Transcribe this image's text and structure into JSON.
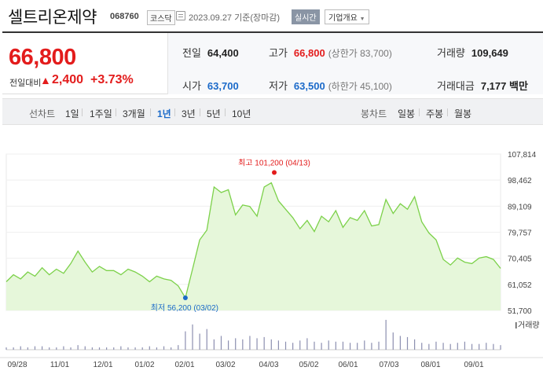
{
  "header": {
    "name": "셀트리온제약",
    "code": "068760",
    "market": "코스닥",
    "date": "2023.09.27",
    "date_suffix": "기준(장마감)",
    "realtime": "실시간",
    "company_info": "기업개요"
  },
  "price": {
    "current": "66,800",
    "change_label": "전일대비",
    "change_arrow": "▲",
    "change": "2,400",
    "change_pct": "+3.73%"
  },
  "stats": {
    "prev_close_label": "전일",
    "prev_close": "64,400",
    "high_label": "고가",
    "high": "66,800",
    "upper_limit": "(상한가 83,700)",
    "volume_label": "거래량",
    "volume": "109,649",
    "open_label": "시가",
    "open": "63,700",
    "low_label": "저가",
    "low": "63,500",
    "lower_limit": "(하한가 45,100)",
    "amount_label": "거래대금",
    "amount": "7,177",
    "amount_unit": "백만"
  },
  "period_bar": {
    "line_chart_label": "선차트",
    "line_periods": [
      "1일",
      "1주일",
      "3개월",
      "1년",
      "3년",
      "5년",
      "10년"
    ],
    "active_period": "1년",
    "candle_chart_label": "봉차트",
    "candle_periods": [
      "일봉",
      "주봉",
      "월봉"
    ]
  },
  "chart_data": {
    "type": "area",
    "title": "",
    "ylim": [
      51700,
      107814
    ],
    "y_ticks": [
      "107,814",
      "98,462",
      "89,109",
      "79,757",
      "70,405",
      "61,052",
      "51,700"
    ],
    "x_ticks": [
      "09/28",
      "11/01",
      "12/01",
      "01/02",
      "02/01",
      "03/02",
      "04/03",
      "05/02",
      "06/01",
      "07/03",
      "08/01",
      "09/01"
    ],
    "max_annotation": "최고 101,200 (04/13)",
    "min_annotation": "최저 56,200 (03/02)",
    "volume_label": "거래량",
    "line_color": "#7cd14a",
    "fill_color": "#e6f7da",
    "x": [
      "09/28",
      "10/05",
      "10/12",
      "10/19",
      "10/26",
      "11/01",
      "11/08",
      "11/15",
      "11/22",
      "11/29",
      "12/01",
      "12/08",
      "12/15",
      "12/22",
      "12/29",
      "01/02",
      "01/09",
      "01/16",
      "01/23",
      "01/30",
      "02/01",
      "02/08",
      "02/15",
      "02/22",
      "02/27",
      "03/02",
      "03/06",
      "03/09",
      "03/13",
      "03/16",
      "03/20",
      "03/23",
      "03/27",
      "03/30",
      "04/03",
      "04/06",
      "04/10",
      "04/13",
      "04/17",
      "04/20",
      "04/24",
      "04/27",
      "05/02",
      "05/08",
      "05/15",
      "05/22",
      "05/29",
      "06/01",
      "06/08",
      "06/15",
      "06/22",
      "06/29",
      "07/03",
      "07/06",
      "07/10",
      "07/13",
      "07/17",
      "07/20",
      "07/24",
      "07/27",
      "08/01",
      "08/07",
      "08/14",
      "08/21",
      "08/28",
      "09/01",
      "09/08",
      "09/15",
      "09/22",
      "09/27"
    ],
    "y": [
      62000,
      64500,
      63000,
      65500,
      64000,
      67000,
      64500,
      66500,
      65000,
      68500,
      73000,
      69000,
      65500,
      67500,
      66000,
      66000,
      64500,
      66500,
      65500,
      64000,
      62000,
      64000,
      63000,
      62500,
      60500,
      56200,
      66500,
      77000,
      80500,
      96000,
      94000,
      95000,
      86000,
      89500,
      89000,
      85500,
      96000,
      97500,
      91000,
      88000,
      85000,
      81000,
      84000,
      80000,
      85500,
      83500,
      87500,
      81500,
      85000,
      84000,
      87500,
      82000,
      82500,
      91500,
      86500,
      90000,
      88000,
      92500,
      83500,
      79500,
      77000,
      70000,
      68000,
      70500,
      69000,
      68500,
      70500,
      71000,
      70000,
      66800
    ],
    "volume": [
      2,
      2,
      3,
      2,
      3,
      3,
      2,
      2,
      3,
      2,
      4,
      3,
      2,
      2,
      2,
      2,
      3,
      2,
      2,
      2,
      3,
      2,
      3,
      2,
      4,
      16,
      22,
      14,
      18,
      9,
      12,
      8,
      10,
      9,
      12,
      10,
      11,
      9,
      8,
      7,
      6,
      8,
      10,
      7,
      6,
      8,
      7,
      7,
      6,
      6,
      8,
      6,
      7,
      26,
      15,
      12,
      11,
      9,
      6,
      5,
      7,
      6,
      5,
      6,
      7,
      5,
      5,
      6,
      5,
      4
    ]
  }
}
